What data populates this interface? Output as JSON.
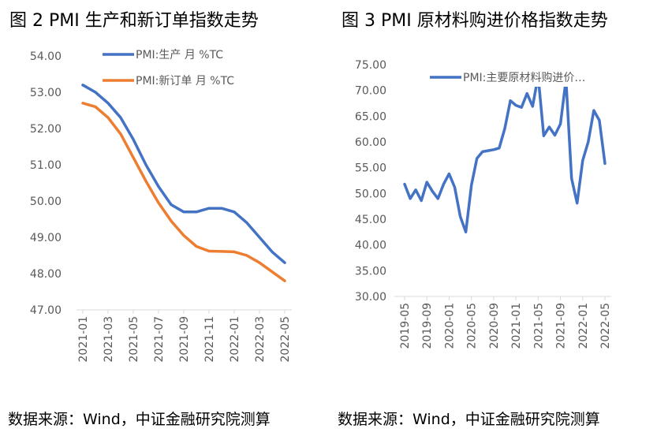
{
  "figures": [
    {
      "title": "图 2 PMI 生产和新订单指数走势",
      "source": "数据来源：Wind，中证金融研究院测算"
    },
    {
      "title": "图 3 PMI 原材料购进价格指数走势",
      "source": "数据来源：Wind，中证金融研究院测算"
    }
  ],
  "chart_data": [
    {
      "type": "line",
      "title": "图 2 PMI 生产和新订单指数走势",
      "xlabel": "",
      "ylabel": "",
      "ylim": [
        47,
        54
      ],
      "y_ticks": [
        "54.00",
        "53.00",
        "52.00",
        "51.00",
        "50.00",
        "49.00",
        "48.00",
        "47.00"
      ],
      "x": [
        "2021-01",
        "2021-02",
        "2021-03",
        "2021-04",
        "2021-05",
        "2021-06",
        "2021-07",
        "2021-08",
        "2021-09",
        "2021-10",
        "2021-11",
        "2021-12",
        "2022-01",
        "2022-02",
        "2022-03",
        "2022-04",
        "2022-05"
      ],
      "x_tick_labels": [
        "2021-01",
        "2021-03",
        "2021-05",
        "2021-07",
        "2021-09",
        "2021-11",
        "2022-01",
        "2022-03",
        "2022-05"
      ],
      "legend_position": "top",
      "grid": false,
      "series": [
        {
          "name": "PMI:生产 月 %TC",
          "color": "#4472C4",
          "values": [
            53.2,
            53.0,
            52.7,
            52.3,
            51.7,
            51.0,
            50.4,
            49.9,
            49.7,
            49.7,
            49.8,
            49.8,
            49.7,
            49.4,
            49.0,
            48.6,
            48.3
          ]
        },
        {
          "name": "PMI:新订单 月 %TC",
          "color": "#ED7D31",
          "values": [
            52.7,
            52.6,
            52.3,
            51.85,
            51.2,
            50.55,
            49.95,
            49.45,
            49.05,
            48.75,
            48.62,
            48.61,
            48.6,
            48.5,
            48.3,
            48.05,
            47.8
          ]
        }
      ]
    },
    {
      "type": "line",
      "title": "图 3 PMI 原材料购进价格指数走势",
      "xlabel": "",
      "ylabel": "",
      "ylim": [
        30,
        75
      ],
      "y_ticks": [
        "75.00",
        "70.00",
        "65.00",
        "60.00",
        "55.00",
        "50.00",
        "45.00",
        "40.00",
        "35.00",
        "30.00"
      ],
      "x_tick_labels": [
        "2019-05",
        "2019-09",
        "2020-01",
        "2020-05",
        "2020-09",
        "2021-01",
        "2021-05",
        "2021-09",
        "2022-01",
        "2022-05"
      ],
      "legend_position": "top",
      "grid": false,
      "series": [
        {
          "name": "PMI:主要原材料购进价…",
          "color": "#4472C4",
          "x": [
            "2019-05",
            "2019-06",
            "2019-07",
            "2019-08",
            "2019-09",
            "2019-10",
            "2019-11",
            "2019-12",
            "2020-01",
            "2020-02",
            "2020-03",
            "2020-04",
            "2020-05",
            "2020-06",
            "2020-07",
            "2020-08",
            "2020-09",
            "2020-10",
            "2020-11",
            "2020-12",
            "2021-01",
            "2021-02",
            "2021-03",
            "2021-04",
            "2021-05",
            "2021-06",
            "2021-07",
            "2021-08",
            "2021-09",
            "2021-10",
            "2021-11",
            "2021-12",
            "2022-01",
            "2022-02",
            "2022-03",
            "2022-04",
            "2022-05"
          ],
          "values": [
            51.8,
            49.0,
            50.7,
            48.6,
            52.2,
            50.4,
            49.0,
            51.8,
            53.8,
            51.2,
            45.5,
            42.5,
            51.6,
            56.8,
            58.1,
            58.3,
            58.5,
            58.8,
            62.6,
            68.0,
            67.1,
            66.7,
            69.4,
            66.9,
            72.8,
            61.2,
            62.9,
            61.3,
            63.5,
            72.1,
            52.9,
            48.1,
            56.4,
            60.0,
            66.1,
            64.2,
            55.8
          ]
        }
      ]
    }
  ]
}
